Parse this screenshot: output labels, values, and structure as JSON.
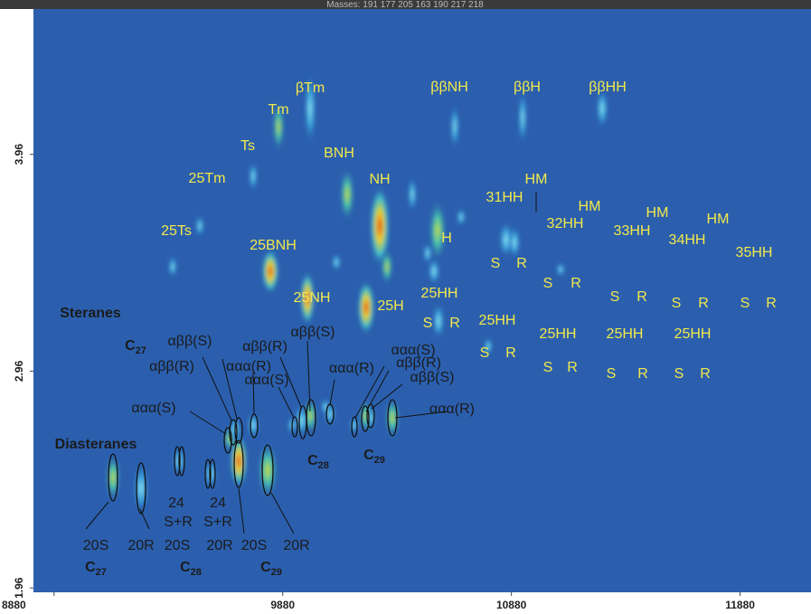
{
  "chart_data": {
    "type": "heatmap",
    "title": "Masses: 191 177 205 163 190 217 218",
    "xlim": [
      8790,
      12190
    ],
    "ylim": [
      1.94,
      4.63
    ],
    "xticks": [
      8880,
      9880,
      10880,
      11880
    ],
    "yticks": [
      1.96,
      2.96,
      3.96
    ],
    "background": "#2b5fae",
    "annotations": [
      {
        "text": "βTm",
        "color": "#f3e94a"
      },
      {
        "text": "Tm",
        "color": "#f3e94a"
      },
      {
        "text": "Ts",
        "color": "#f3e94a"
      },
      {
        "text": "BNH",
        "color": "#f3e94a"
      },
      {
        "text": "25Tm",
        "color": "#f3e94a"
      },
      {
        "text": "NH",
        "color": "#f3e94a"
      },
      {
        "text": "ββNH",
        "color": "#f3e94a"
      },
      {
        "text": "ββH",
        "color": "#f3e94a"
      },
      {
        "text": "ββHH",
        "color": "#f3e94a"
      },
      {
        "text": "31HH",
        "color": "#f3e94a"
      },
      {
        "text": "HM",
        "color": "#f3e94a"
      },
      {
        "text": "HM",
        "color": "#f3e94a"
      },
      {
        "text": "32HH",
        "color": "#f3e94a"
      },
      {
        "text": "HM",
        "color": "#f3e94a"
      },
      {
        "text": "33HH",
        "color": "#f3e94a"
      },
      {
        "text": "HM",
        "color": "#f3e94a"
      },
      {
        "text": "34HH",
        "color": "#f3e94a"
      },
      {
        "text": "35HH",
        "color": "#f3e94a"
      },
      {
        "text": "25Ts",
        "color": "#f3e94a"
      },
      {
        "text": "25BNH",
        "color": "#f3e94a"
      },
      {
        "text": "H",
        "color": "#f3e94a"
      },
      {
        "text": "S",
        "color": "#f3e94a"
      },
      {
        "text": "R",
        "color": "#f3e94a"
      },
      {
        "text": "S",
        "color": "#f3e94a"
      },
      {
        "text": "R",
        "color": "#f3e94a"
      },
      {
        "text": "S",
        "color": "#f3e94a"
      },
      {
        "text": "R",
        "color": "#f3e94a"
      },
      {
        "text": "S",
        "color": "#f3e94a"
      },
      {
        "text": "R",
        "color": "#f3e94a"
      },
      {
        "text": "S",
        "color": "#f3e94a"
      },
      {
        "text": "R",
        "color": "#f3e94a"
      },
      {
        "text": "25NH",
        "color": "#f3e94a"
      },
      {
        "text": "25H",
        "color": "#f3e94a"
      },
      {
        "text": "25HH",
        "color": "#f3e94a"
      },
      {
        "text": "S",
        "color": "#f3e94a"
      },
      {
        "text": "R",
        "color": "#f3e94a"
      },
      {
        "text": "25HH",
        "color": "#f3e94a"
      },
      {
        "text": "S",
        "color": "#f3e94a"
      },
      {
        "text": "R",
        "color": "#f3e94a"
      },
      {
        "text": "25HH",
        "color": "#f3e94a"
      },
      {
        "text": "S",
        "color": "#f3e94a"
      },
      {
        "text": "R",
        "color": "#f3e94a"
      },
      {
        "text": "25HH",
        "color": "#f3e94a"
      },
      {
        "text": "S",
        "color": "#f3e94a"
      },
      {
        "text": "R",
        "color": "#f3e94a"
      },
      {
        "text": "25HH",
        "color": "#f3e94a"
      },
      {
        "text": "S",
        "color": "#f3e94a"
      },
      {
        "text": "R",
        "color": "#f3e94a"
      },
      {
        "text": "Steranes",
        "color": "#1b1b1b",
        "bold": true
      },
      {
        "text": "Diasteranes",
        "color": "#1b1b1b",
        "bold": true
      },
      {
        "text": "C",
        "sub": "27",
        "color": "#1b1b1b",
        "bold": true
      },
      {
        "text": "αββ(S)",
        "color": "#1b1b1b"
      },
      {
        "text": "αββ(R)",
        "color": "#1b1b1b"
      },
      {
        "text": "ααα(R)",
        "color": "#1b1b1b"
      },
      {
        "text": "αββ(R)",
        "color": "#1b1b1b"
      },
      {
        "text": "αββ(S)",
        "color": "#1b1b1b"
      },
      {
        "text": "ααα(S)",
        "color": "#1b1b1b"
      },
      {
        "text": "ααα(R)",
        "color": "#1b1b1b"
      },
      {
        "text": "ααα(S)",
        "color": "#1b1b1b"
      },
      {
        "text": "αββ(R)",
        "color": "#1b1b1b"
      },
      {
        "text": "αββ(S)",
        "color": "#1b1b1b"
      },
      {
        "text": "ααα(S)",
        "color": "#1b1b1b"
      },
      {
        "text": "ααα(R)",
        "color": "#1b1b1b"
      },
      {
        "text": "C",
        "sub": "28",
        "color": "#1b1b1b",
        "bold": true
      },
      {
        "text": "C",
        "sub": "29",
        "color": "#1b1b1b",
        "bold": true
      },
      {
        "text": "24",
        "color": "#1b1b1b"
      },
      {
        "text": "S+R",
        "color": "#1b1b1b"
      },
      {
        "text": "24",
        "color": "#1b1b1b"
      },
      {
        "text": "S+R",
        "color": "#1b1b1b"
      },
      {
        "text": "20S",
        "color": "#1b1b1b"
      },
      {
        "text": "20R",
        "color": "#1b1b1b"
      },
      {
        "text": "20S",
        "color": "#1b1b1b"
      },
      {
        "text": "20R",
        "color": "#1b1b1b"
      },
      {
        "text": "20S",
        "color": "#1b1b1b"
      },
      {
        "text": "20R",
        "color": "#1b1b1b"
      },
      {
        "text": "C",
        "sub": "27",
        "color": "#1b1b1b",
        "bold": true
      },
      {
        "text": "C",
        "sub": "28",
        "color": "#1b1b1b",
        "bold": true
      },
      {
        "text": "C",
        "sub": "29",
        "color": "#1b1b1b",
        "bold": true
      }
    ]
  }
}
